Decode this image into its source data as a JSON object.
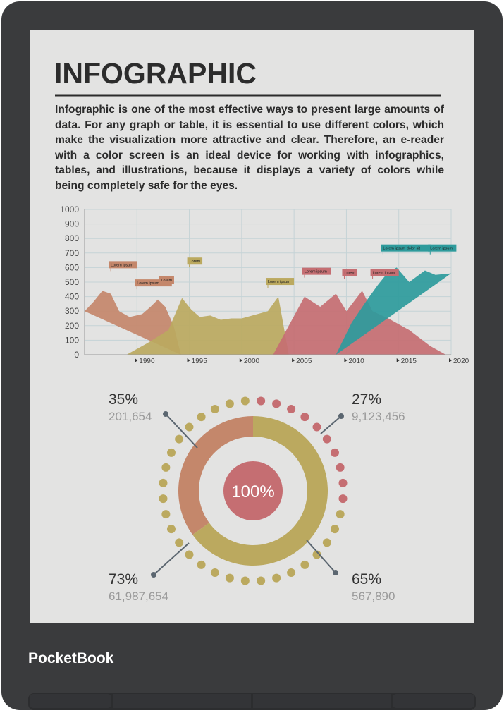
{
  "device": {
    "brand": "PocketBook"
  },
  "document": {
    "title": "INFOGRAPHIC",
    "paragraph": "Infographic is one of the most effective ways to present large amounts of data. For any graph or table, it is essential to use different colors, which make the visualization more attractive and clear. Therefore, an e-reader with a color screen is an ideal device for working with infographics, tables, and illustrations, because it displays a variety of colors while being completely safe for the eyes."
  },
  "chart_data": [
    {
      "type": "area",
      "xlim": [
        1985,
        2020
      ],
      "xticks": [
        1990,
        1995,
        2000,
        2005,
        2010,
        2015,
        2020
      ],
      "ylim": [
        0,
        1000
      ],
      "yticks": [
        0,
        100,
        200,
        300,
        400,
        500,
        600,
        700,
        800,
        900,
        1000
      ],
      "grid": true,
      "series": [
        {
          "color": "#c4876b",
          "x": [
            1985,
            1985.8,
            1986.7,
            1987.5,
            1988.3,
            1989.3,
            1990.5,
            1991.3,
            1992,
            1992.7,
            1993.5,
            1994.2
          ],
          "y": [
            300,
            360,
            440,
            420,
            300,
            260,
            280,
            330,
            380,
            330,
            200,
            0
          ]
        },
        {
          "color": "#bba95f",
          "x": [
            1989,
            1991,
            1993,
            1994.3,
            1995.2,
            1996,
            1997,
            1998,
            1999,
            2000,
            2001.5,
            2002.5,
            2003.5,
            2004.5
          ],
          "y": [
            0,
            80,
            170,
            390,
            310,
            260,
            270,
            240,
            250,
            250,
            280,
            300,
            400,
            0
          ]
        },
        {
          "color": "#c56e72",
          "x": [
            2003,
            2004.5,
            2006,
            2007.5,
            2009,
            2010,
            2011.5,
            2012.5,
            2014,
            2016,
            2018,
            2019.5
          ],
          "y": [
            0,
            200,
            400,
            330,
            420,
            300,
            440,
            300,
            250,
            170,
            60,
            0
          ]
        },
        {
          "color": "#2e9b9c",
          "x": [
            2009,
            2010.5,
            2012,
            2013,
            2014,
            2014.8,
            2016,
            2017.5,
            2018.5,
            2020
          ],
          "y": [
            0,
            220,
            380,
            480,
            570,
            600,
            500,
            580,
            550,
            560
          ]
        }
      ],
      "annotations": [
        {
          "text": "Lorem ipsum",
          "x": 1987.5,
          "y": 605,
          "color": "#c4876b"
        },
        {
          "text": "Lorem ipsum dol",
          "x": 1990,
          "y": 480,
          "color": "#c4876b"
        },
        {
          "text": "Lorem",
          "x": 1992.3,
          "y": 500,
          "color": "#c4876b"
        },
        {
          "text": "Lorem",
          "x": 1995,
          "y": 630,
          "color": "#bba95f"
        },
        {
          "text": "Lorem ipsum",
          "x": 2002.5,
          "y": 490,
          "color": "#bba95f"
        },
        {
          "text": "Lorem ipsum",
          "x": 2006,
          "y": 560,
          "color": "#c56e72"
        },
        {
          "text": "Lorem",
          "x": 2009.8,
          "y": 550,
          "color": "#c56e72"
        },
        {
          "text": "Lorem ipsum",
          "x": 2012.5,
          "y": 550,
          "color": "#c56e72"
        },
        {
          "text": "Lorem ipsum dolor sit",
          "x": 2013.5,
          "y": 720,
          "color": "#2e9b9c"
        },
        {
          "text": "Lorem ipsum",
          "x": 2018,
          "y": 720,
          "color": "#2e9b9c"
        }
      ]
    },
    {
      "type": "donut",
      "center": {
        "value": 100,
        "label": "100%",
        "color": "#c56e72"
      },
      "inner": {
        "values": [
          35,
          65
        ],
        "value_labels": [
          "35%",
          "65%"
        ],
        "counts": [
          201654,
          567890
        ],
        "count_labels": [
          "201,654",
          "567,890"
        ],
        "colors": [
          "#c4876b",
          "#bba95f"
        ]
      },
      "outer": {
        "values": [
          27,
          73
        ],
        "value_labels": [
          "27%",
          "73%"
        ],
        "counts": [
          9123456,
          61987654
        ],
        "count_labels": [
          "9,123,456",
          "61,987,654"
        ],
        "colors": [
          "#c56e72",
          "#bba95f"
        ]
      }
    }
  ]
}
